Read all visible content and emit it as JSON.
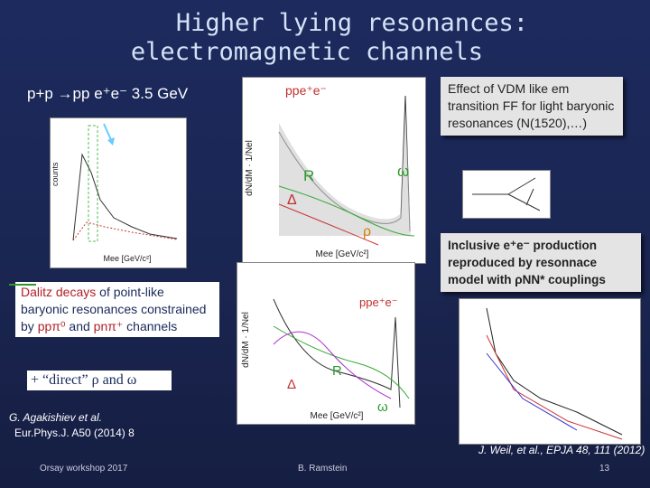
{
  "header": {
    "title_lines": [
      "Higher lying resonances:",
      "electromagnetic channels"
    ],
    "reaction": "p+p →pp e⁺e⁻ 3.5 GeV"
  },
  "plots": {
    "top": {
      "y_label": "dN/dM · 1/Nel",
      "x_label": "Mee [GeV/c²]",
      "labels": [
        "ppe⁺e⁻",
        "R",
        "ω",
        "Δ",
        "ρ"
      ]
    },
    "bottom": {
      "y_label": "dN/dM · 1/Nel",
      "x_label": "Mee [GeV/c²]",
      "labels": [
        "ppe⁺e⁻",
        "R",
        "Δ",
        "ω"
      ]
    },
    "left": {
      "y_label": "counts",
      "x_label": "Mee [GeV/c²]"
    }
  },
  "callouts": {
    "vdm": "Effect of VDM like em transition FF for light baryonic resonances (N(1520),…)",
    "inclusive": "Inclusive e⁺e⁻ production reproduced by resonnace model with ρNN* couplings",
    "dalitz": [
      "Dalitz decays",
      " of point-like baryonic resonances constrained by ",
      "ppπ⁰",
      " and ",
      "pnπ⁺",
      " channels"
    ],
    "direct": "+ “direct” ρ and ω"
  },
  "references": {
    "agakishiev": [
      "G. Agakishiev et al.",
      "Eur.Phys.J. A50 (2014) 8"
    ],
    "weil": "J. Weil, et al., EPJA 48, 111 (2012)"
  },
  "footer": {
    "left": "Orsay workshop 2017",
    "center": "B. Ramstein",
    "page": "13"
  }
}
